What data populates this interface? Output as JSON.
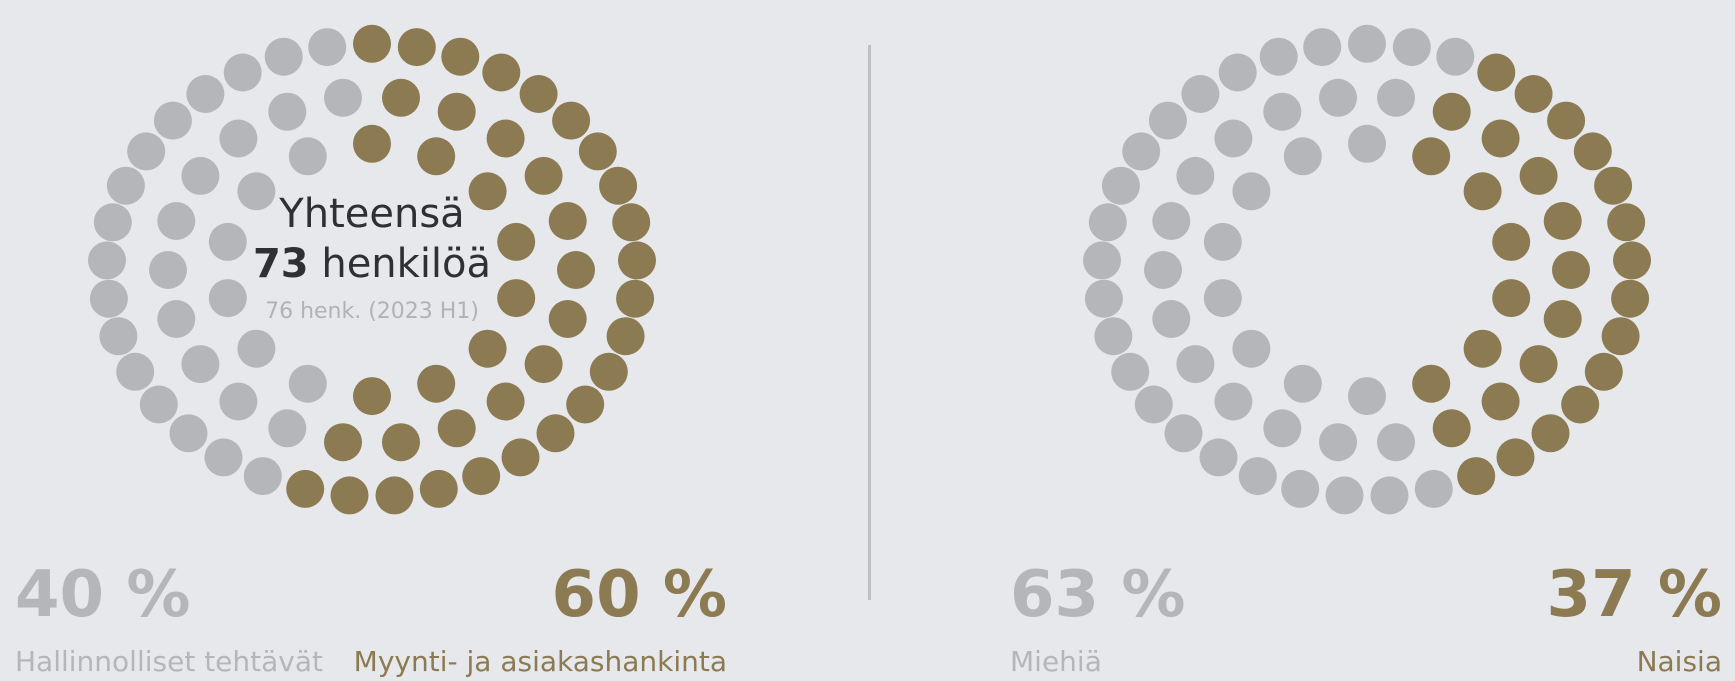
{
  "colors": {
    "gold": "#8c7b52",
    "grey": "#b5b6b9",
    "background": "#e7e8eb"
  },
  "center": {
    "title": "Yhteensä",
    "total_number": "73",
    "total_unit": "henkilöä",
    "previous": "76 henk. (2023 H1)"
  },
  "left": {
    "grey_pct": "40 %",
    "grey_label": "Hallinnolliset tehtävät",
    "gold_pct": "60 %",
    "gold_label": "Myynti- ja asiakashankinta"
  },
  "right": {
    "grey_pct": "63 %",
    "grey_label": "Miehiä",
    "gold_pct": "37 %",
    "gold_label": "Naisia"
  },
  "chart_data": [
    {
      "type": "pie",
      "total": 73,
      "slices": [
        {
          "label": "Hallinnolliset tehtävät",
          "percent": 40,
          "color": "#b5b6b9"
        },
        {
          "label": "Myynti- ja asiakashankinta",
          "percent": 60,
          "color": "#8c7b52"
        }
      ]
    },
    {
      "type": "pie",
      "total": 73,
      "slices": [
        {
          "label": "Miehiä",
          "percent": 63,
          "color": "#b5b6b9"
        },
        {
          "label": "Naisia",
          "percent": 37,
          "color": "#8c7b52"
        }
      ]
    }
  ]
}
